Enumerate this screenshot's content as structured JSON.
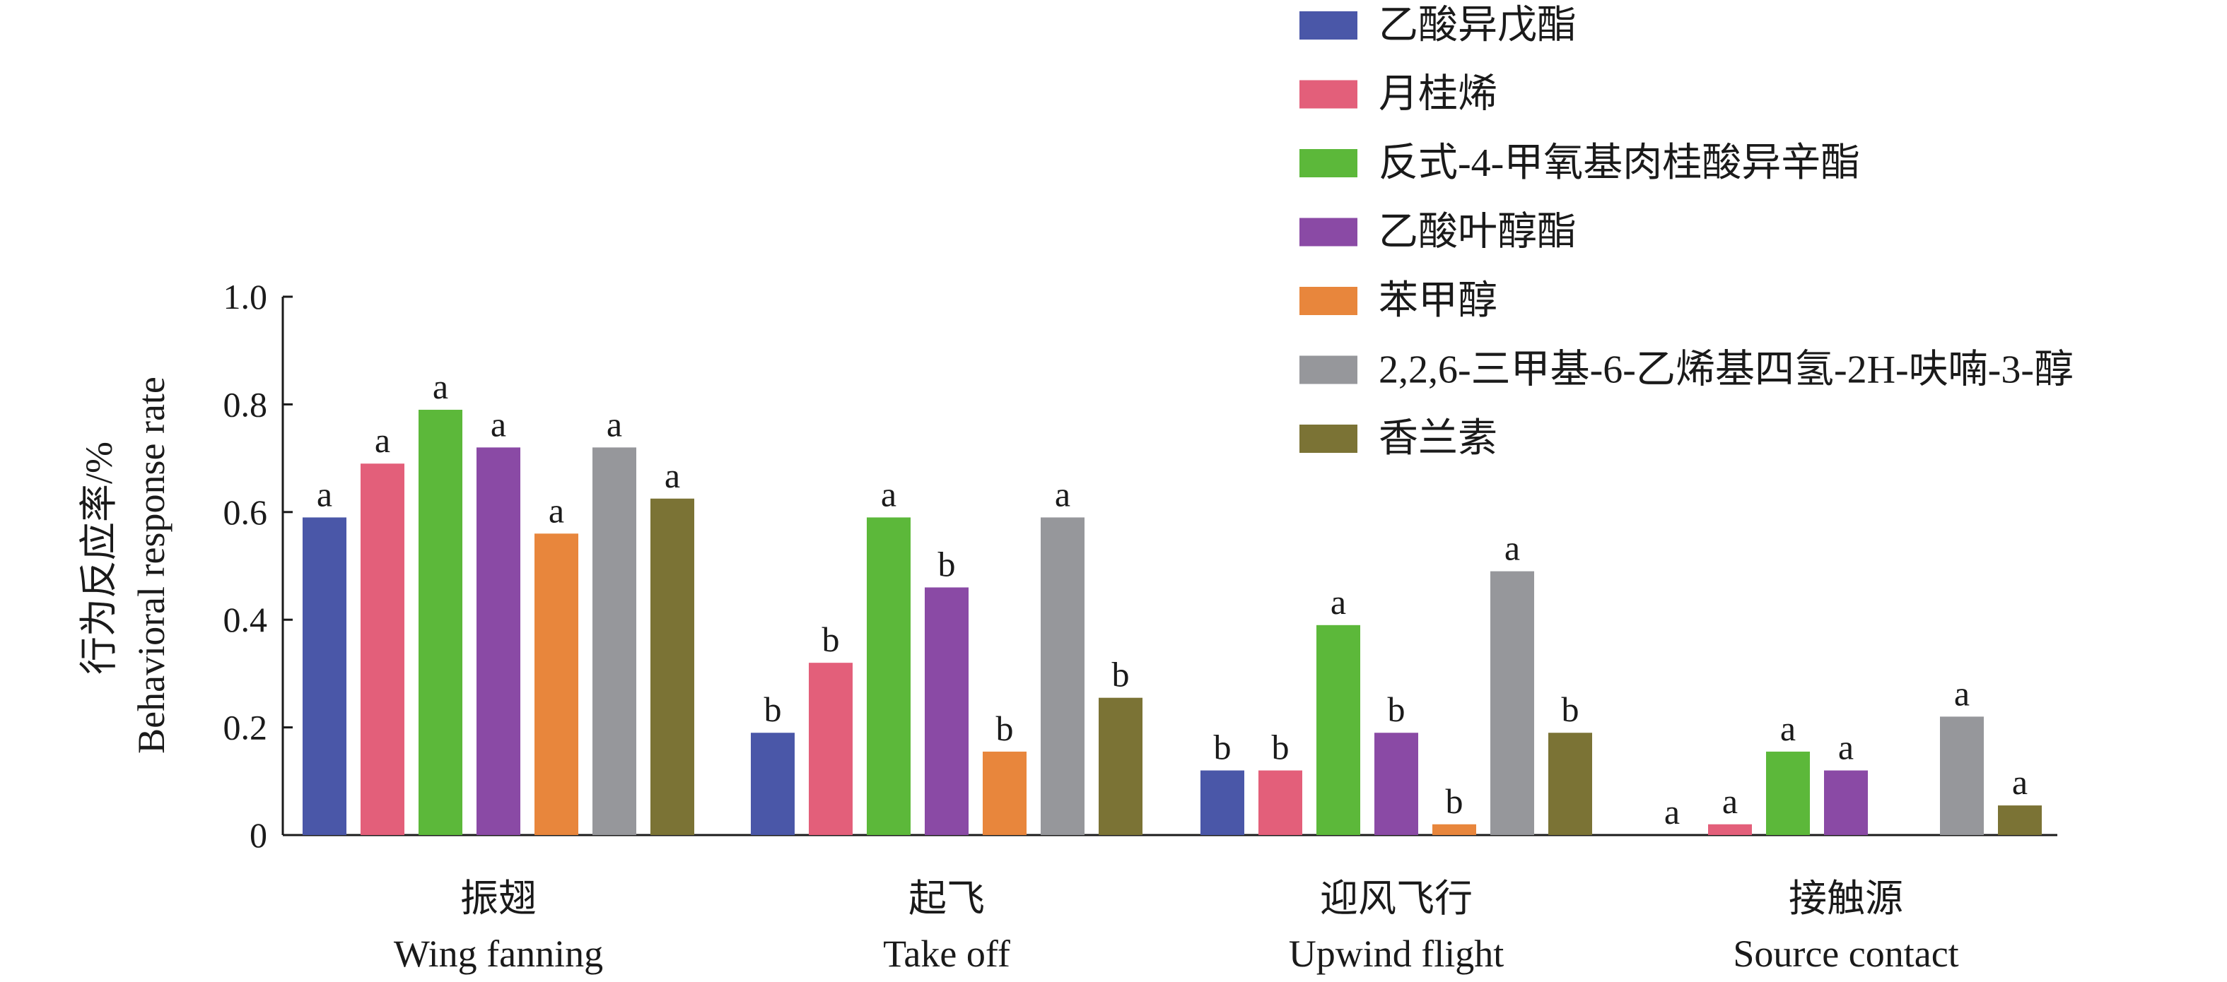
{
  "chart_data": {
    "type": "bar",
    "ylabel_cn": "行为反应率/%",
    "ylabel_en": "Behavioral response rate",
    "ylim": [
      0,
      1.0
    ],
    "yticks": [
      {
        "value": 0,
        "label": "0"
      },
      {
        "value": 0.2,
        "label": "0.2"
      },
      {
        "value": 0.4,
        "label": "0.4"
      },
      {
        "value": 0.6,
        "label": "0.6"
      },
      {
        "value": 0.8,
        "label": "0.8"
      },
      {
        "value": 1.0,
        "label": "1.0"
      }
    ],
    "categories": [
      {
        "cn": "振翅",
        "en": "Wing fanning"
      },
      {
        "cn": "起飞",
        "en": "Take off"
      },
      {
        "cn": "迎风飞行",
        "en": "Upwind flight"
      },
      {
        "cn": "接触源",
        "en": "Source contact"
      }
    ],
    "legend_position": "top-right",
    "series": [
      {
        "name": "乙酸异戊酯",
        "color": "#4a57a8",
        "values": [
          0.59,
          0.19,
          0.12,
          0.0
        ],
        "letters": [
          "a",
          "b",
          "b",
          "a"
        ]
      },
      {
        "name": "月桂烯",
        "color": "#e35f7a",
        "values": [
          0.69,
          0.32,
          0.12,
          0.02
        ],
        "letters": [
          "a",
          "b",
          "b",
          "a"
        ]
      },
      {
        "name": "反式-4-甲氧基肉桂酸异辛酯",
        "color": "#5cb83a",
        "values": [
          0.79,
          0.59,
          0.39,
          0.155
        ],
        "letters": [
          "a",
          "a",
          "a",
          "a"
        ]
      },
      {
        "name": "乙酸叶醇酯",
        "color": "#8a4aa5",
        "values": [
          0.72,
          0.46,
          0.19,
          0.12
        ],
        "letters": [
          "a",
          "b",
          "b",
          "a"
        ]
      },
      {
        "name": "苯甲醇",
        "color": "#e8863c",
        "values": [
          0.56,
          0.155,
          0.02,
          0.0
        ],
        "letters": [
          "a",
          "b",
          "b",
          ""
        ]
      },
      {
        "name": "2,2,6-三甲基-6-乙烯基四氢-2H-呋喃-3-醇",
        "color": "#96979b",
        "values": [
          0.72,
          0.59,
          0.49,
          0.22
        ],
        "letters": [
          "a",
          "a",
          "a",
          "a"
        ]
      },
      {
        "name": "香兰素",
        "color": "#7b7335",
        "values": [
          0.625,
          0.255,
          0.19,
          0.055
        ],
        "letters": [
          "a",
          "b",
          "b",
          "a"
        ]
      }
    ]
  }
}
